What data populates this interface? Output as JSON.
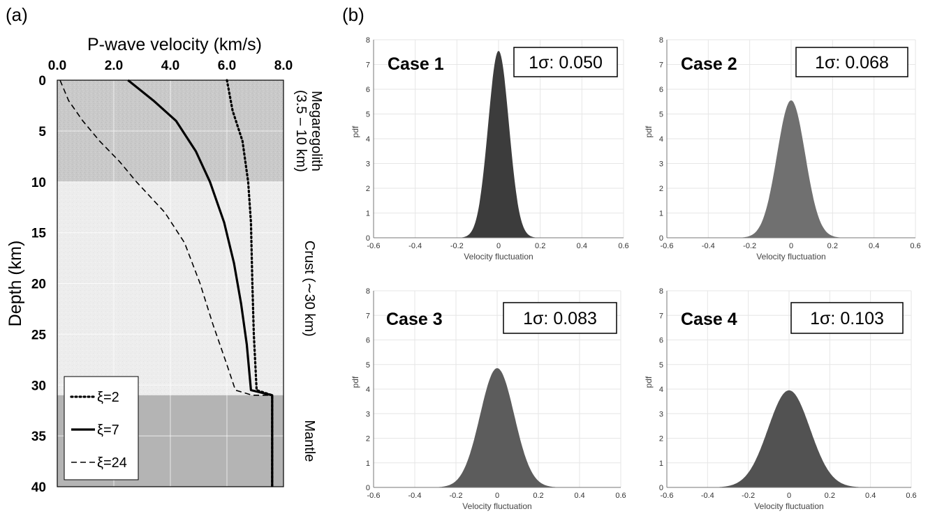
{
  "panel_labels": {
    "a": "(a)",
    "b": "(b)"
  },
  "chart_data": [
    {
      "type": "line",
      "panel": "(a)",
      "xlabel": "P-wave velocity (km/s)",
      "ylabel": "Depth (km)",
      "xlim": [
        0,
        8
      ],
      "ylim": [
        0,
        40
      ],
      "x_axis_position": "top",
      "y_inverted": true,
      "xticks": [
        "0.0",
        "2.0",
        "4.0",
        "6.0",
        "8.0"
      ],
      "yticks": [
        "0",
        "5",
        "10",
        "15",
        "20",
        "25",
        "30",
        "35",
        "40"
      ],
      "grid": true,
      "legend_placement": "bottom-left",
      "zones": [
        {
          "name": "Megaregolith",
          "label_lines": [
            "Megaregolith",
            "(3.5 – 10 km)"
          ],
          "depth_range": [
            0,
            10
          ],
          "color": "#c8c8c8"
        },
        {
          "name": "Crust",
          "label_lines": [
            "Crust (∼30 km)"
          ],
          "depth_range": [
            10,
            31
          ],
          "color": "#ececec"
        },
        {
          "name": "Mantle",
          "label_lines": [
            "Mantle"
          ],
          "depth_range": [
            31,
            40
          ],
          "color": "#b4b4b4"
        }
      ],
      "series": [
        {
          "name": "ξ=2",
          "style": "dotted",
          "points": [
            [
              6.0,
              0
            ],
            [
              6.2,
              3
            ],
            [
              6.55,
              6
            ],
            [
              6.75,
              10
            ],
            [
              6.85,
              14
            ],
            [
              6.9,
              20
            ],
            [
              6.95,
              25
            ],
            [
              7.05,
              30.5
            ],
            [
              7.6,
              31
            ],
            [
              7.6,
              40
            ]
          ]
        },
        {
          "name": "ξ=7",
          "style": "solid",
          "points": [
            [
              2.5,
              0
            ],
            [
              3.4,
              2
            ],
            [
              4.2,
              4
            ],
            [
              4.9,
              7
            ],
            [
              5.4,
              10
            ],
            [
              5.9,
              14
            ],
            [
              6.25,
              18
            ],
            [
              6.5,
              22
            ],
            [
              6.7,
              26
            ],
            [
              6.85,
              30.5
            ],
            [
              7.6,
              31
            ],
            [
              7.6,
              40
            ]
          ]
        },
        {
          "name": "ξ=24",
          "style": "dashed",
          "points": [
            [
              0.1,
              0
            ],
            [
              0.4,
              2
            ],
            [
              0.9,
              4
            ],
            [
              1.5,
              6
            ],
            [
              2.2,
              8
            ],
            [
              2.8,
              10
            ],
            [
              3.8,
              13
            ],
            [
              4.5,
              16
            ],
            [
              5.05,
              20
            ],
            [
              5.5,
              24
            ],
            [
              6.0,
              28
            ],
            [
              6.3,
              30.5
            ],
            [
              6.9,
              31
            ],
            [
              7.6,
              31
            ],
            [
              7.6,
              40
            ]
          ]
        }
      ]
    },
    {
      "type": "area",
      "panel": "(b)",
      "title": "Case 1",
      "annotation": "1σ: 0.050",
      "xlabel": "Velocity fluctuation",
      "ylabel": "pdf",
      "xlim": [
        -0.6,
        0.6
      ],
      "ylim": [
        0,
        8
      ],
      "xticks": [
        "-0.6",
        "-0.4",
        "-0.2",
        "0",
        "0.2",
        "0.4",
        "0.6"
      ],
      "yticks": [
        "0",
        "1",
        "2",
        "3",
        "4",
        "5",
        "6",
        "7",
        "8"
      ],
      "grid": true,
      "mean": 0,
      "sigma": 0.05,
      "peak": 7.55,
      "color": "#3c3c3c"
    },
    {
      "type": "area",
      "panel": "(b)",
      "title": "Case 2",
      "annotation": "1σ: 0.068",
      "xlabel": "Velocity fluctuation",
      "ylabel": "pdf",
      "xlim": [
        -0.6,
        0.6
      ],
      "ylim": [
        0,
        8
      ],
      "xticks": [
        "-0.6",
        "-0.4",
        "-0.2",
        "0",
        "0.2",
        "0.4",
        "0.6"
      ],
      "yticks": [
        "0",
        "1",
        "2",
        "3",
        "4",
        "5",
        "6",
        "7",
        "8"
      ],
      "grid": true,
      "mean": 0,
      "sigma": 0.068,
      "peak": 5.55,
      "color": "#707070"
    },
    {
      "type": "area",
      "panel": "(b)",
      "title": "Case 3",
      "annotation": "1σ: 0.083",
      "xlabel": "Velocity fluctuation",
      "ylabel": "pdf",
      "xlim": [
        -0.6,
        0.6
      ],
      "ylim": [
        0,
        8
      ],
      "xticks": [
        "-0.6",
        "-0.4",
        "-0.2",
        "0",
        "0.2",
        "0.4",
        "0.6"
      ],
      "yticks": [
        "0",
        "1",
        "2",
        "3",
        "4",
        "5",
        "6",
        "7",
        "8"
      ],
      "grid": true,
      "mean": 0,
      "sigma": 0.083,
      "peak": 4.85,
      "color": "#5c5c5c"
    },
    {
      "type": "area",
      "panel": "(b)",
      "title": "Case 4",
      "annotation": "1σ: 0.103",
      "xlabel": "Velocity fluctuation",
      "ylabel": "pdf",
      "xlim": [
        -0.6,
        0.6
      ],
      "ylim": [
        0,
        8
      ],
      "xticks": [
        "-0.6",
        "-0.4",
        "-0.2",
        "0",
        "0.2",
        "0.4",
        "0.6"
      ],
      "yticks": [
        "0",
        "1",
        "2",
        "3",
        "4",
        "5",
        "6",
        "7",
        "8"
      ],
      "grid": true,
      "mean": 0,
      "sigma": 0.103,
      "peak": 3.95,
      "color": "#525252"
    }
  ]
}
